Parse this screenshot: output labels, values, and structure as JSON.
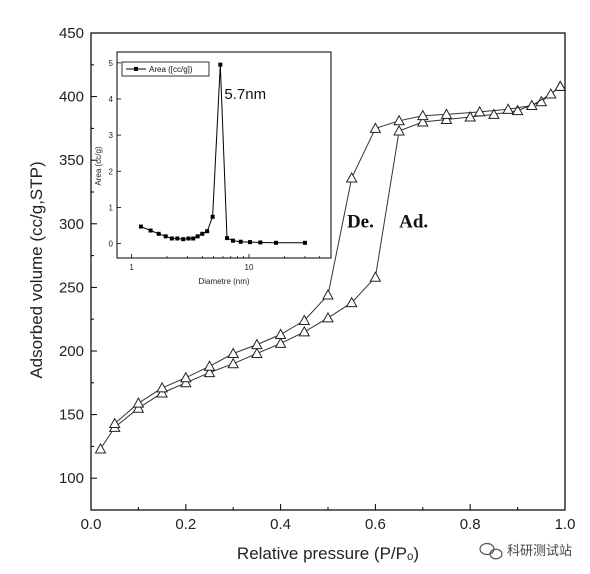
{
  "chart_data": [
    {
      "type": "line",
      "xlabel": "Relative pressure (P/Pₒ)",
      "ylabel": "Adsorbed volume (cc/g,STP)",
      "xlim": [
        0,
        1.0
      ],
      "ylim": [
        75,
        450
      ],
      "xticks": [
        "0.0",
        "0.2",
        "0.4",
        "0.6",
        "0.8",
        "1.0"
      ],
      "xtick_values": [
        0,
        0.2,
        0.4,
        0.6,
        0.8,
        1.0
      ],
      "yticks": [
        "100",
        "150",
        "200",
        "250",
        "300",
        "350",
        "400",
        "450"
      ],
      "ytick_values": [
        100,
        150,
        200,
        250,
        300,
        350,
        400,
        450
      ],
      "grid": false,
      "marker": "open-triangle",
      "series": [
        {
          "x": [
            0.02,
            0.05,
            0.1,
            0.15,
            0.2,
            0.25,
            0.3,
            0.35,
            0.4,
            0.45,
            0.5,
            0.55,
            0.6,
            0.65,
            0.7,
            0.75,
            0.8,
            0.85,
            0.9,
            0.95,
            0.99
          ],
          "y": [
            123,
            140,
            155,
            167,
            175,
            183,
            190,
            198,
            206,
            215,
            226,
            238,
            258,
            373,
            380,
            382,
            384,
            386,
            389,
            396,
            408
          ]
        },
        {
          "x": [
            0.99,
            0.97,
            0.93,
            0.88,
            0.82,
            0.75,
            0.7,
            0.65,
            0.6,
            0.55,
            0.5,
            0.45,
            0.4,
            0.35,
            0.3,
            0.25,
            0.2,
            0.15,
            0.1,
            0.05
          ],
          "y": [
            408,
            402,
            393,
            390,
            388,
            386,
            385,
            381,
            375,
            336,
            244,
            224,
            213,
            205,
            198,
            188,
            179,
            171,
            159,
            143
          ]
        }
      ],
      "annotations": [
        {
          "text": "De.",
          "x": 0.54,
          "y": 297
        },
        {
          "text": "Ad.",
          "x": 0.65,
          "y": 297
        }
      ]
    },
    {
      "type": "line",
      "xlabel": "Diametre (nm)",
      "ylabel": "Area (cc/g)",
      "xscale": "log",
      "xlim": [
        0.75,
        50
      ],
      "ylim": [
        -0.4,
        5.3
      ],
      "xticks": [
        "1",
        "10"
      ],
      "xtick_values": [
        1,
        10
      ],
      "yticks": [
        "0",
        "1",
        "2",
        "3",
        "4",
        "5"
      ],
      "ytick_values": [
        0,
        1,
        2,
        3,
        4,
        5
      ],
      "grid": false,
      "legend": "top-left",
      "series": [
        {
          "name": "Area ([cc/g])",
          "x": [
            1.2,
            1.45,
            1.7,
            1.95,
            2.2,
            2.45,
            2.75,
            3.05,
            3.35,
            3.65,
            4.0,
            4.4,
            4.9,
            5.7,
            6.5,
            7.3,
            8.5,
            10.2,
            12.5,
            17.0,
            30.0
          ],
          "y": [
            0.47,
            0.36,
            0.27,
            0.2,
            0.14,
            0.14,
            0.12,
            0.14,
            0.14,
            0.2,
            0.27,
            0.34,
            0.74,
            4.95,
            0.15,
            0.08,
            0.05,
            0.04,
            0.03,
            0.02,
            0.02
          ]
        }
      ],
      "annotations": [
        {
          "text": "5.7nm",
          "x": 9.5,
          "y": 4.0
        }
      ]
    }
  ],
  "watermark": {
    "text": "科研测试站",
    "icon": "wechat-bubble-icon"
  }
}
